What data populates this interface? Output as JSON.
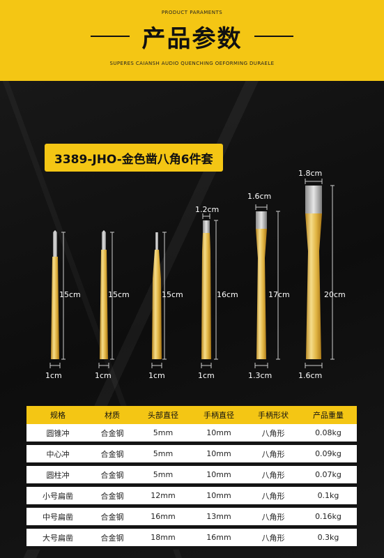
{
  "header": {
    "sub_top": "PRODUCT PARAMENTS",
    "title": "产品参数",
    "sub_bottom": "SUPERES CAIANSH AUDIO QUENCHING OEFORMING DURAELE"
  },
  "product_name": "3389-JHO-金色凿八角6件套",
  "colors": {
    "accent": "#f4c614",
    "background": "#141414",
    "tool_gold": "#e8c35a"
  },
  "tools": [
    {
      "tip_label": "",
      "length_label": "15cm",
      "width_label": "1cm"
    },
    {
      "tip_label": "",
      "length_label": "15cm",
      "width_label": "1cm"
    },
    {
      "tip_label": "",
      "length_label": "15cm",
      "width_label": "1cm"
    },
    {
      "tip_label": "1.2cm",
      "length_label": "16cm",
      "width_label": "1cm"
    },
    {
      "tip_label": "1.6cm",
      "length_label": "17cm",
      "width_label": "1.3cm"
    },
    {
      "tip_label": "1.8cm",
      "length_label": "20cm",
      "width_label": "1.6cm"
    }
  ],
  "table": {
    "headers": [
      "规格",
      "材质",
      "头部直径",
      "手柄直径",
      "手柄形状",
      "产品重量"
    ],
    "rows": [
      [
        "圆锥冲",
        "合金钢",
        "5mm",
        "10mm",
        "八角形",
        "0.08kg"
      ],
      [
        "中心冲",
        "合金钢",
        "5mm",
        "10mm",
        "八角形",
        "0.09kg"
      ],
      [
        "圆柱冲",
        "合金钢",
        "5mm",
        "10mm",
        "八角形",
        "0.07kg"
      ],
      [
        "小号扁凿",
        "合金钢",
        "12mm",
        "10mm",
        "八角形",
        "0.1kg"
      ],
      [
        "中号扁凿",
        "合金钢",
        "16mm",
        "13mm",
        "八角形",
        "0.16kg"
      ],
      [
        "大号扁凿",
        "合金钢",
        "18mm",
        "16mm",
        "八角形",
        "0.3kg"
      ]
    ]
  }
}
